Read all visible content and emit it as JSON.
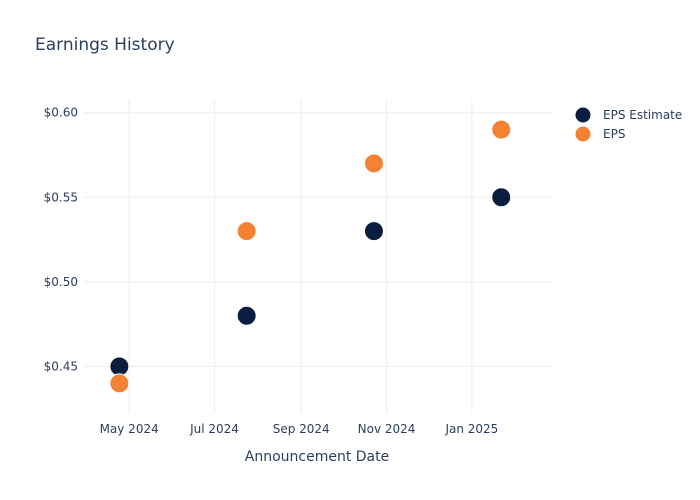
{
  "chart_data": {
    "type": "scatter",
    "title": "Earnings History",
    "xlabel": "Announcement Date",
    "ylabel": "",
    "x_ticks": [
      {
        "date": "2024-05-01",
        "label": "May 2024"
      },
      {
        "date": "2024-07-01",
        "label": "Jul 2024"
      },
      {
        "date": "2024-09-01",
        "label": "Sep 2024"
      },
      {
        "date": "2024-11-01",
        "label": "Nov 2024"
      },
      {
        "date": "2025-01-01",
        "label": "Jan 2025"
      }
    ],
    "y_ticks": [
      {
        "value": 0.45,
        "label": "$0.45"
      },
      {
        "value": 0.5,
        "label": "$0.50"
      },
      {
        "value": 0.55,
        "label": "$0.55"
      },
      {
        "value": 0.6,
        "label": "$0.60"
      }
    ],
    "xlim": [
      "2024-03-29",
      "2025-02-28"
    ],
    "ylim": [
      0.4225,
      0.6075
    ],
    "grid": true,
    "legend_position": "right",
    "series": [
      {
        "name": "EPS Estimate",
        "color": "#0b1d3f",
        "points": [
          {
            "x": "2024-04-24",
            "y": 0.45
          },
          {
            "x": "2024-07-24",
            "y": 0.48
          },
          {
            "x": "2024-10-23",
            "y": 0.53
          },
          {
            "x": "2025-01-22",
            "y": 0.55
          }
        ]
      },
      {
        "name": "EPS",
        "color": "#f58233",
        "points": [
          {
            "x": "2024-04-24",
            "y": 0.44
          },
          {
            "x": "2024-07-24",
            "y": 0.53
          },
          {
            "x": "2024-10-23",
            "y": 0.57
          },
          {
            "x": "2025-01-22",
            "y": 0.59
          }
        ]
      }
    ]
  }
}
